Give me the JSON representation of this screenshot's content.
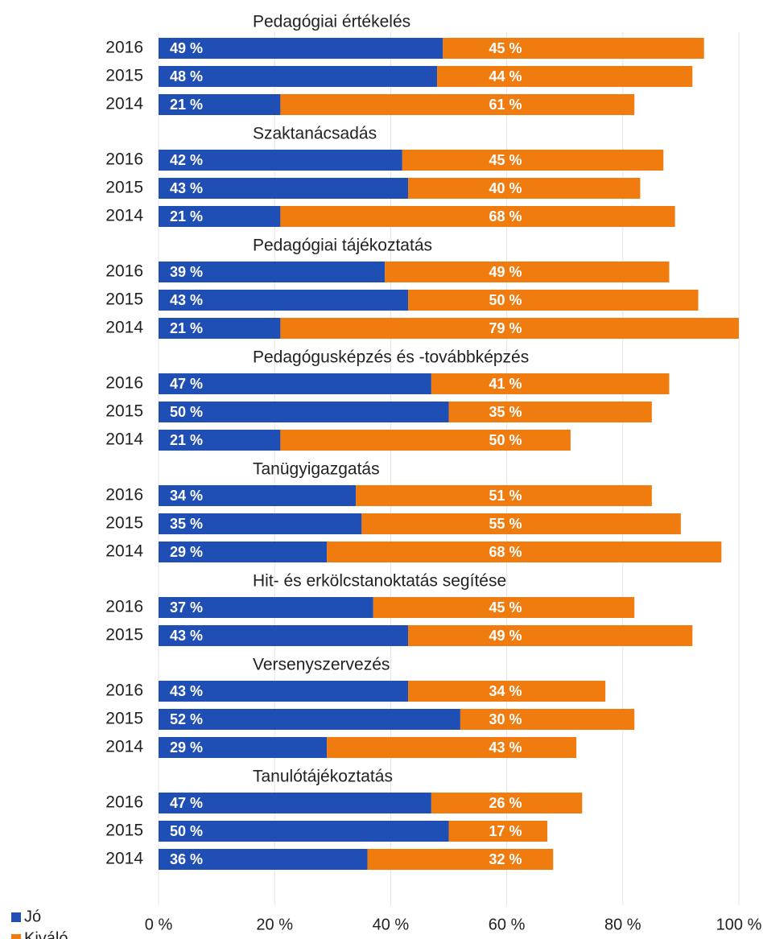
{
  "chart_data": {
    "type": "bar",
    "stacked": true,
    "grid": true,
    "xlim": [
      0,
      100
    ],
    "xticks": [
      {
        "value": 0,
        "label": "0 %"
      },
      {
        "value": 20,
        "label": "20 %"
      },
      {
        "value": 40,
        "label": "40 %"
      },
      {
        "value": 60,
        "label": "60 %"
      },
      {
        "value": 80,
        "label": "80 %"
      },
      {
        "value": 100,
        "label": "100 %"
      }
    ],
    "legend": "bottom-left",
    "series": [
      {
        "name": "Jó",
        "color": "#1f4fb4"
      },
      {
        "name": "Kiváló",
        "color": "#f07b0f"
      }
    ],
    "groups": [
      {
        "title": "Pedagógiai értékelés",
        "categories": [
          "2016",
          "2015",
          "2014"
        ],
        "series": [
          {
            "values": [
              49,
              48,
              21
            ],
            "value_labels": [
              "49 %",
              "48 %",
              "21 %"
            ]
          },
          {
            "values": [
              45,
              44,
              61
            ],
            "value_labels": [
              "45 %",
              "44 %",
              "61 %"
            ]
          }
        ]
      },
      {
        "title": "Szaktanácsadás",
        "categories": [
          "2016",
          "2015",
          "2014"
        ],
        "series": [
          {
            "values": [
              42,
              43,
              21
            ],
            "value_labels": [
              "42 %",
              "43 %",
              "21 %"
            ]
          },
          {
            "values": [
              45,
              40,
              68
            ],
            "value_labels": [
              "45 %",
              "40 %",
              "68 %"
            ]
          }
        ]
      },
      {
        "title": "Pedagógiai tájékoztatás",
        "categories": [
          "2016",
          "2015",
          "2014"
        ],
        "series": [
          {
            "values": [
              39,
              43,
              21
            ],
            "value_labels": [
              "39 %",
              "43 %",
              "21 %"
            ]
          },
          {
            "values": [
              49,
              50,
              79
            ],
            "value_labels": [
              "49 %",
              "50 %",
              "79 %"
            ]
          }
        ]
      },
      {
        "title": "Pedagógusképzés és -továbbképzés",
        "categories": [
          "2016",
          "2015",
          "2014"
        ],
        "series": [
          {
            "values": [
              47,
              50,
              21
            ],
            "value_labels": [
              "47 %",
              "50 %",
              "21 %"
            ]
          },
          {
            "values": [
              41,
              35,
              50
            ],
            "value_labels": [
              "41 %",
              "35 %",
              "50 %"
            ]
          }
        ]
      },
      {
        "title": "Tanügyigazgatás",
        "categories": [
          "2016",
          "2015",
          "2014"
        ],
        "series": [
          {
            "values": [
              34,
              35,
              29
            ],
            "value_labels": [
              "34 %",
              "35 %",
              "29 %"
            ]
          },
          {
            "values": [
              51,
              55,
              68
            ],
            "value_labels": [
              "51 %",
              "55 %",
              "68 %"
            ]
          }
        ]
      },
      {
        "title": "Hit- és erkölcstanoktatás segítése",
        "categories": [
          "2016",
          "2015"
        ],
        "series": [
          {
            "values": [
              37,
              43
            ],
            "value_labels": [
              "37 %",
              "43 %"
            ]
          },
          {
            "values": [
              45,
              49
            ],
            "value_labels": [
              "45 %",
              "49 %"
            ]
          }
        ]
      },
      {
        "title": "Versenyszervezés",
        "categories": [
          "2016",
          "2015",
          "2014"
        ],
        "series": [
          {
            "values": [
              43,
              52,
              29
            ],
            "value_labels": [
              "43 %",
              "52 %",
              "29 %"
            ]
          },
          {
            "values": [
              34,
              30,
              43
            ],
            "value_labels": [
              "34 %",
              "30 %",
              "43 %"
            ]
          }
        ]
      },
      {
        "title": "Tanulótájékoztatás",
        "categories": [
          "2016",
          "2015",
          "2014"
        ],
        "series": [
          {
            "values": [
              47,
              50,
              36
            ],
            "value_labels": [
              "47 %",
              "50 %",
              "36 %"
            ]
          },
          {
            "values": [
              26,
              17,
              32
            ],
            "value_labels": [
              "26 %",
              "17 %",
              "32 %"
            ]
          }
        ]
      }
    ]
  }
}
